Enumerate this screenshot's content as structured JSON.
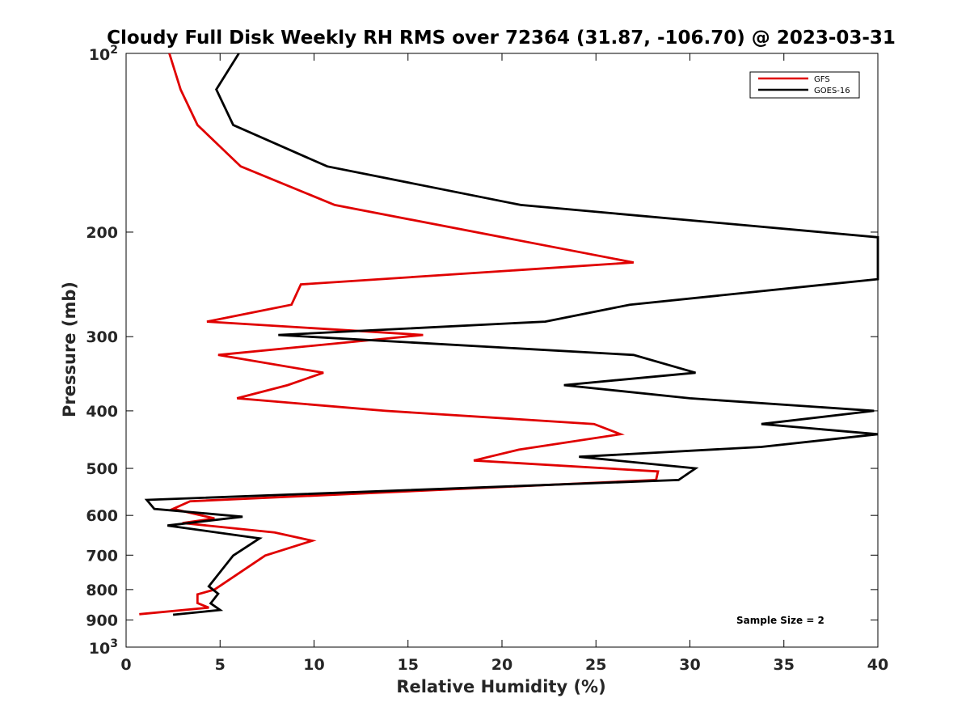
{
  "chart_data": {
    "type": "line",
    "title": "Cloudy Full Disk Weekly RH RMS over 72364 (31.87, -106.70) @ 2023-03-31",
    "xlabel": "Relative Humidity (%)",
    "ylabel": "Pressure (mb)",
    "xlim": [
      0,
      40
    ],
    "ylim": [
      100,
      1000
    ],
    "y_scale": "log",
    "y_reversed": true,
    "x_ticks": [
      0,
      5,
      10,
      15,
      20,
      25,
      30,
      35,
      40
    ],
    "x_tick_labels": [
      "0",
      "5",
      "10",
      "15",
      "20",
      "25",
      "30",
      "35",
      "40"
    ],
    "y_ticks": [
      100,
      200,
      300,
      400,
      500,
      600,
      700,
      800,
      900,
      1000
    ],
    "y_tick_labels": [
      {
        "base": "10",
        "exp": "2"
      },
      {
        "text": "200"
      },
      {
        "text": "300"
      },
      {
        "text": "400"
      },
      {
        "text": "500"
      },
      {
        "text": "600"
      },
      {
        "text": "700"
      },
      {
        "text": "800"
      },
      {
        "text": "900"
      },
      {
        "base": "10",
        "exp": "3"
      }
    ],
    "grid": false,
    "legend_position": "top-right",
    "annotation": "Sample Size = 2",
    "series": [
      {
        "name": "GFS",
        "color": "#e00000",
        "points": [
          [
            2.3,
            100
          ],
          [
            2.9,
            115
          ],
          [
            3.8,
            132
          ],
          [
            6.1,
            155
          ],
          [
            11.1,
            180
          ],
          [
            27.0,
            225
          ],
          [
            9.3,
            245
          ],
          [
            8.8,
            265
          ],
          [
            4.3,
            283
          ],
          [
            15.8,
            298
          ],
          [
            4.9,
            322
          ],
          [
            10.5,
            345
          ],
          [
            8.6,
            362
          ],
          [
            5.9,
            381
          ],
          [
            13.8,
            400
          ],
          [
            24.9,
            421
          ],
          [
            26.3,
            438
          ],
          [
            20.9,
            465
          ],
          [
            18.5,
            485
          ],
          [
            28.3,
            506
          ],
          [
            28.2,
            523
          ],
          [
            3.4,
            568
          ],
          [
            2.5,
            585
          ],
          [
            4.7,
            607
          ],
          [
            3.0,
            618
          ],
          [
            7.9,
            641
          ],
          [
            9.9,
            662
          ],
          [
            7.4,
            701
          ],
          [
            6.0,
            751
          ],
          [
            4.7,
            800
          ],
          [
            3.8,
            815
          ],
          [
            3.8,
            843
          ],
          [
            4.4,
            858
          ],
          [
            0.7,
            880
          ]
        ]
      },
      {
        "name": "GOES-16",
        "color": "#000000",
        "points": [
          [
            6.0,
            100
          ],
          [
            4.8,
            115
          ],
          [
            5.7,
            132
          ],
          [
            10.7,
            155
          ],
          [
            21.0,
            180
          ],
          [
            40.0,
            204
          ],
          [
            40.0,
            240
          ],
          [
            26.8,
            265
          ],
          [
            22.3,
            283
          ],
          [
            8.1,
            298
          ],
          [
            27.0,
            322
          ],
          [
            30.3,
            345
          ],
          [
            23.3,
            362
          ],
          [
            30.0,
            381
          ],
          [
            39.8,
            400
          ],
          [
            33.8,
            421
          ],
          [
            40.0,
            438
          ],
          [
            33.8,
            460
          ],
          [
            24.1,
            478
          ],
          [
            30.3,
            500
          ],
          [
            29.4,
            523
          ],
          [
            1.1,
            565
          ],
          [
            1.5,
            585
          ],
          [
            6.2,
            603
          ],
          [
            2.2,
            624
          ],
          [
            7.1,
            656
          ],
          [
            5.7,
            701
          ],
          [
            4.4,
            790
          ],
          [
            4.9,
            813
          ],
          [
            4.5,
            844
          ],
          [
            5.0,
            866
          ],
          [
            2.5,
            882
          ]
        ]
      }
    ]
  }
}
